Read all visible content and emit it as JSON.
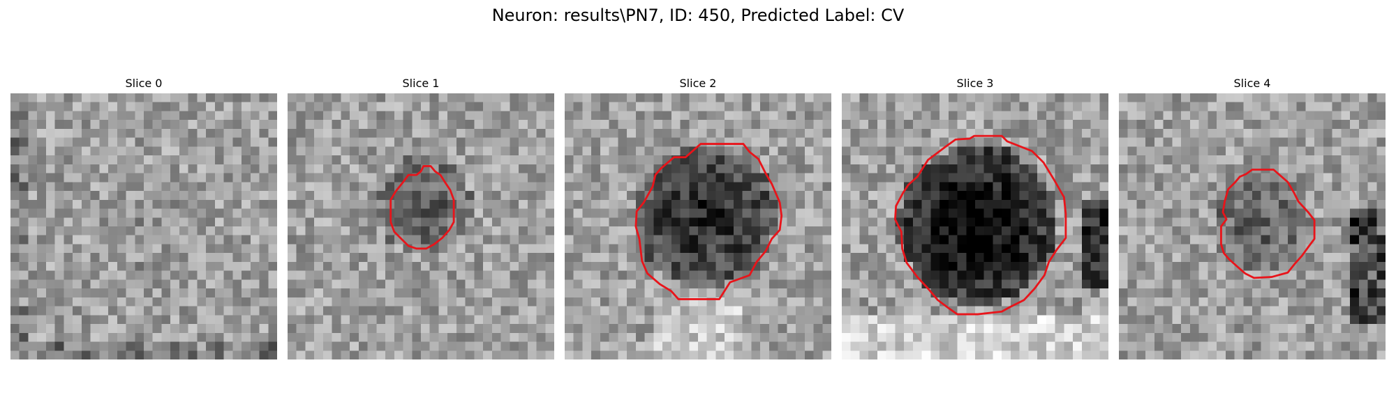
{
  "figure": {
    "suptitle": "Neuron: results\\PN7, ID: 450, Predicted Label: CV"
  },
  "panels": [
    {
      "title": "Slice 0",
      "has_contour": false,
      "brightness": "medium-bright",
      "dark_center": 0.0
    },
    {
      "title": "Slice 1",
      "has_contour": true,
      "brightness": "mixed",
      "dark_center": 0.35
    },
    {
      "title": "Slice 2",
      "has_contour": true,
      "brightness": "mixed",
      "dark_center": 0.65
    },
    {
      "title": "Slice 3",
      "has_contour": true,
      "brightness": "bright-surround",
      "dark_center": 0.9
    },
    {
      "title": "Slice 4",
      "has_contour": true,
      "brightness": "mixed",
      "dark_center": 0.35
    }
  ],
  "colors": {
    "contour": "#e8141a",
    "background": "#ffffff"
  }
}
